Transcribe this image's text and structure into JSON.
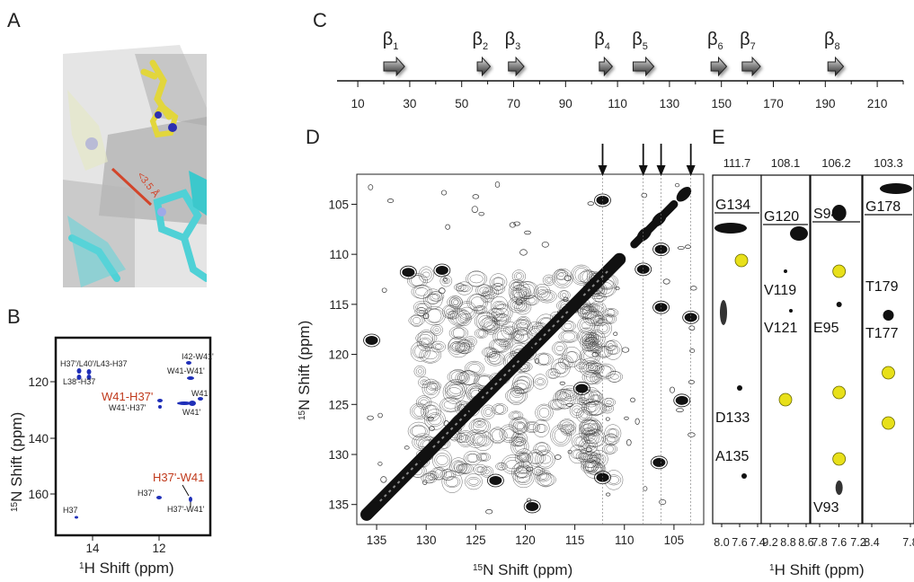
{
  "panels": {
    "A": "A",
    "B": "B",
    "C": "C",
    "D": "D",
    "E": "E"
  },
  "panelA": {
    "distance_label": "<3.5 Å"
  },
  "panelB": {
    "xlabel_sup": "1",
    "xlabel": "H Shift (ppm)",
    "ylabel_sup": "15",
    "ylabel": "N Shift (ppm)",
    "xticks": [
      "14",
      "12"
    ],
    "yticks": [
      "120",
      "140",
      "160"
    ],
    "peaks": [
      {
        "label": "H37'/L40'/L43-H37"
      },
      {
        "label": "L38'-H37"
      },
      {
        "label": "I42-W41'"
      },
      {
        "label": "W41-W41'"
      },
      {
        "label": "W41"
      },
      {
        "label": "W41'"
      },
      {
        "label": "W41'-H37'"
      },
      {
        "label": "H37'"
      },
      {
        "label": "H37'-W41'"
      },
      {
        "label": "H37"
      }
    ],
    "highlight": [
      "W41-H37'",
      "H37'-W41"
    ],
    "highlight_color": "#c0391b",
    "peak_color": "#1f2fb8"
  },
  "chart_data": [
    {
      "type": "topology",
      "panel": "C",
      "xticks": [
        "10",
        "30",
        "50",
        "70",
        "90",
        "110",
        "130",
        "150",
        "170",
        "190",
        "210"
      ],
      "xlim": [
        2,
        220
      ],
      "strands": [
        {
          "name": "β1",
          "sub": "1",
          "start": 20,
          "end": 28
        },
        {
          "name": "β2",
          "sub": "2",
          "start": 56,
          "end": 61
        },
        {
          "name": "β3",
          "sub": "3",
          "start": 68,
          "end": 74
        },
        {
          "name": "β4",
          "sub": "4",
          "start": 103,
          "end": 108
        },
        {
          "name": "β5",
          "sub": "5",
          "start": 116,
          "end": 124
        },
        {
          "name": "β6",
          "sub": "6",
          "start": 146,
          "end": 152
        },
        {
          "name": "β7",
          "sub": "7",
          "start": 158,
          "end": 165
        },
        {
          "name": "β8",
          "sub": "8",
          "start": 191,
          "end": 197
        }
      ]
    },
    {
      "type": "scatter",
      "panel": "D",
      "xlabel_sup": "15",
      "xlabel": "N Shift (ppm)",
      "ylabel_sup": "15",
      "ylabel": "N Shift  (ppm)",
      "xlim": [
        137,
        102
      ],
      "ylim": [
        102,
        137
      ],
      "xticks": [
        "135",
        "130",
        "125",
        "120",
        "115",
        "110",
        "105"
      ],
      "yticks": [
        "105",
        "110",
        "115",
        "120",
        "125",
        "130",
        "135"
      ],
      "arrows_at": [
        112.2,
        108.1,
        106.3,
        103.3
      ],
      "diagonal_peaks": [
        {
          "x": 104,
          "y": 104
        },
        {
          "x": 106.5,
          "y": 106.5
        },
        {
          "x": 108,
          "y": 108
        },
        {
          "x": 111,
          "y": 111
        },
        {
          "x": 115,
          "y": 115
        },
        {
          "x": 120,
          "y": 120
        },
        {
          "x": 125,
          "y": 125
        },
        {
          "x": 130,
          "y": 130
        },
        {
          "x": 135.5,
          "y": 135.5
        }
      ],
      "cross_peaks": [
        {
          "x": 112.2,
          "y": 132.3
        },
        {
          "x": 112.2,
          "y": 104.6
        },
        {
          "x": 106.3,
          "y": 115.3
        },
        {
          "x": 106.3,
          "y": 109.5
        },
        {
          "x": 108.1,
          "y": 111.5
        },
        {
          "x": 103.3,
          "y": 116.3
        },
        {
          "x": 119.3,
          "y": 135.2
        },
        {
          "x": 131.8,
          "y": 111.8
        },
        {
          "x": 135.5,
          "y": 118.6
        },
        {
          "x": 128.4,
          "y": 111.6
        },
        {
          "x": 123.0,
          "y": 132.6
        },
        {
          "x": 114.3,
          "y": 123.4
        },
        {
          "x": 106.5,
          "y": 130.8
        },
        {
          "x": 104.2,
          "y": 124.6
        }
      ]
    },
    {
      "type": "strips",
      "panel": "E",
      "xlabel_sup": "1",
      "xlabel": "H Shift (ppm)",
      "strips": [
        {
          "header": "111.7",
          "xticks": [
            "8.0",
            "7.6",
            "7.4"
          ],
          "labels": [
            {
              "text": "G134",
              "underline": true
            },
            {
              "text": "D133"
            },
            {
              "text": "A135"
            }
          ]
        },
        {
          "header": "108.1",
          "xticks": [
            "9.2",
            "8.8",
            "8.6"
          ],
          "labels": [
            {
              "text": "G120",
              "underline": true
            },
            {
              "text": "V119"
            },
            {
              "text": "V121"
            }
          ]
        },
        {
          "header": "106.2",
          "xticks": [
            "7.8",
            "7.6",
            "7.2"
          ],
          "labels": [
            {
              "text": "S94",
              "underline": true
            },
            {
              "text": "E95"
            },
            {
              "text": "V93"
            }
          ]
        },
        {
          "header": "103.3",
          "xticks": [
            "8.4",
            "7.8"
          ],
          "labels": [
            {
              "text": "G178",
              "underline": true
            },
            {
              "text": "T179"
            },
            {
              "text": "T177"
            }
          ]
        }
      ],
      "highlight_color": "#e8e01a"
    }
  ]
}
